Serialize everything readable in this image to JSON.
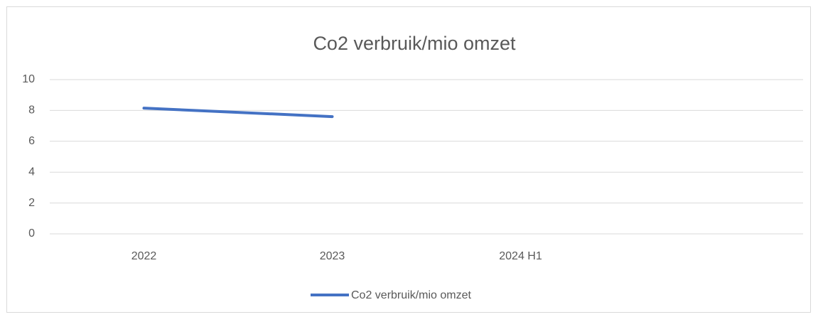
{
  "chart_data": {
    "type": "line",
    "title": "Co2 verbruik/mio omzet",
    "categories": [
      "2022",
      "2023",
      "2024 H1",
      null
    ],
    "series": [
      {
        "name": "Co2 verbruik/mio omzet",
        "color": "#4472c4",
        "values": [
          8.15,
          7.6,
          null,
          null
        ]
      }
    ],
    "ylim": [
      0,
      10
    ],
    "yticks": [
      0,
      2,
      4,
      6,
      8,
      10
    ],
    "grid": true,
    "legend": "bottom"
  }
}
